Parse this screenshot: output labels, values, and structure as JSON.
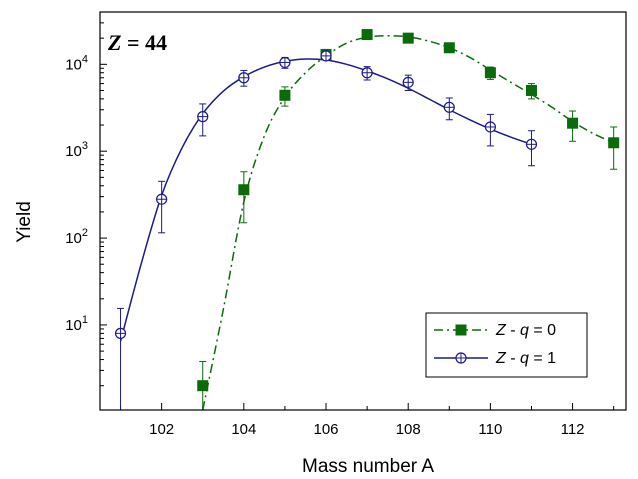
{
  "chart_data": {
    "type": "scatter",
    "xlabel": "Mass number A",
    "ylabel": "Yield",
    "annotation": "Z = 44",
    "annotation_parts": {
      "var": "Z",
      "rest": " = 44"
    },
    "yscale": "log",
    "xlim": [
      100.5,
      113.3
    ],
    "ylim": [
      1.05,
      40000
    ],
    "xticks": [
      102,
      104,
      106,
      108,
      110,
      112
    ],
    "yticks": [
      {
        "value": 10,
        "base": "10",
        "exp": "1"
      },
      {
        "value": 100,
        "base": "10",
        "exp": "2"
      },
      {
        "value": 1000,
        "base": "10",
        "exp": "3"
      },
      {
        "value": 10000,
        "base": "10",
        "exp": "4"
      }
    ],
    "legend_position": "bottom-right",
    "series": [
      {
        "label": {
          "var": "Z",
          "rest": " - ",
          "var2": "q",
          "eq": " = 0"
        },
        "color": "#0b6b0b",
        "marker": "filled-square",
        "line": "dash-dot",
        "points": [
          {
            "x": 103,
            "y": 2.0,
            "lo": 1.0,
            "hi": 3.8
          },
          {
            "x": 104,
            "y": 360,
            "lo": 150,
            "hi": 580
          },
          {
            "x": 105,
            "y": 4400,
            "lo": 3300,
            "hi": 5500
          },
          {
            "x": 106,
            "y": 13000,
            "lo": 11700,
            "hi": 14200
          },
          {
            "x": 107,
            "y": 22000,
            "lo": 21000,
            "hi": 23000
          },
          {
            "x": 108,
            "y": 20000,
            "lo": 19000,
            "hi": 21000
          },
          {
            "x": 109,
            "y": 15500,
            "lo": 14300,
            "hi": 16800
          },
          {
            "x": 110,
            "y": 8000,
            "lo": 6700,
            "hi": 9300
          },
          {
            "x": 111,
            "y": 5000,
            "lo": 4000,
            "hi": 6000
          },
          {
            "x": 112,
            "y": 2100,
            "lo": 1300,
            "hi": 2900
          },
          {
            "x": 113,
            "y": 1250,
            "lo": 620,
            "hi": 1900
          }
        ],
        "curve": [
          [
            103,
            1.0
          ],
          [
            103.5,
            15
          ],
          [
            104,
            260
          ],
          [
            104.5,
            1500
          ],
          [
            105,
            4200
          ],
          [
            105.5,
            8000
          ],
          [
            106,
            12500
          ],
          [
            106.5,
            17500
          ],
          [
            107,
            20500
          ],
          [
            107.5,
            21300
          ],
          [
            108,
            20700
          ],
          [
            108.5,
            18500
          ],
          [
            109,
            15500
          ],
          [
            109.5,
            12000
          ],
          [
            110,
            8600
          ],
          [
            110.5,
            6200
          ],
          [
            111,
            4500
          ],
          [
            111.5,
            3200
          ],
          [
            112,
            2200
          ],
          [
            112.5,
            1600
          ],
          [
            113,
            1250
          ]
        ]
      },
      {
        "label": {
          "var": "Z",
          "rest": " - ",
          "var2": "q",
          "eq": " = 1"
        },
        "color": "#1a1a8c",
        "marker": "open-circle-plus",
        "line": "solid",
        "points": [
          {
            "x": 101,
            "y": 8.0,
            "lo": 1.0,
            "hi": 15.5
          },
          {
            "x": 102,
            "y": 280,
            "lo": 115,
            "hi": 450
          },
          {
            "x": 103,
            "y": 2500,
            "lo": 1500,
            "hi": 3500
          },
          {
            "x": 104,
            "y": 7000,
            "lo": 5600,
            "hi": 8500
          },
          {
            "x": 105,
            "y": 10500,
            "lo": 9000,
            "hi": 12000
          },
          {
            "x": 106,
            "y": 12500,
            "lo": 11200,
            "hi": 13800
          },
          {
            "x": 107,
            "y": 8000,
            "lo": 6600,
            "hi": 9400
          },
          {
            "x": 108,
            "y": 6200,
            "lo": 5000,
            "hi": 7500
          },
          {
            "x": 109,
            "y": 3200,
            "lo": 2300,
            "hi": 4100
          },
          {
            "x": 110,
            "y": 1900,
            "lo": 1150,
            "hi": 2650
          },
          {
            "x": 111,
            "y": 1200,
            "lo": 680,
            "hi": 1720
          }
        ],
        "curve": [
          [
            101,
            6.5
          ],
          [
            101.5,
            50
          ],
          [
            102,
            310
          ],
          [
            102.5,
            1100
          ],
          [
            103,
            2700
          ],
          [
            103.5,
            4900
          ],
          [
            104,
            7200
          ],
          [
            104.5,
            9300
          ],
          [
            105,
            10800
          ],
          [
            105.5,
            11500
          ],
          [
            106,
            11200
          ],
          [
            106.5,
            10000
          ],
          [
            107,
            8400
          ],
          [
            107.5,
            6800
          ],
          [
            108,
            5300
          ],
          [
            108.5,
            4000
          ],
          [
            109,
            3000
          ],
          [
            109.5,
            2300
          ],
          [
            110,
            1800
          ],
          [
            110.5,
            1450
          ],
          [
            111,
            1200
          ]
        ]
      }
    ]
  }
}
